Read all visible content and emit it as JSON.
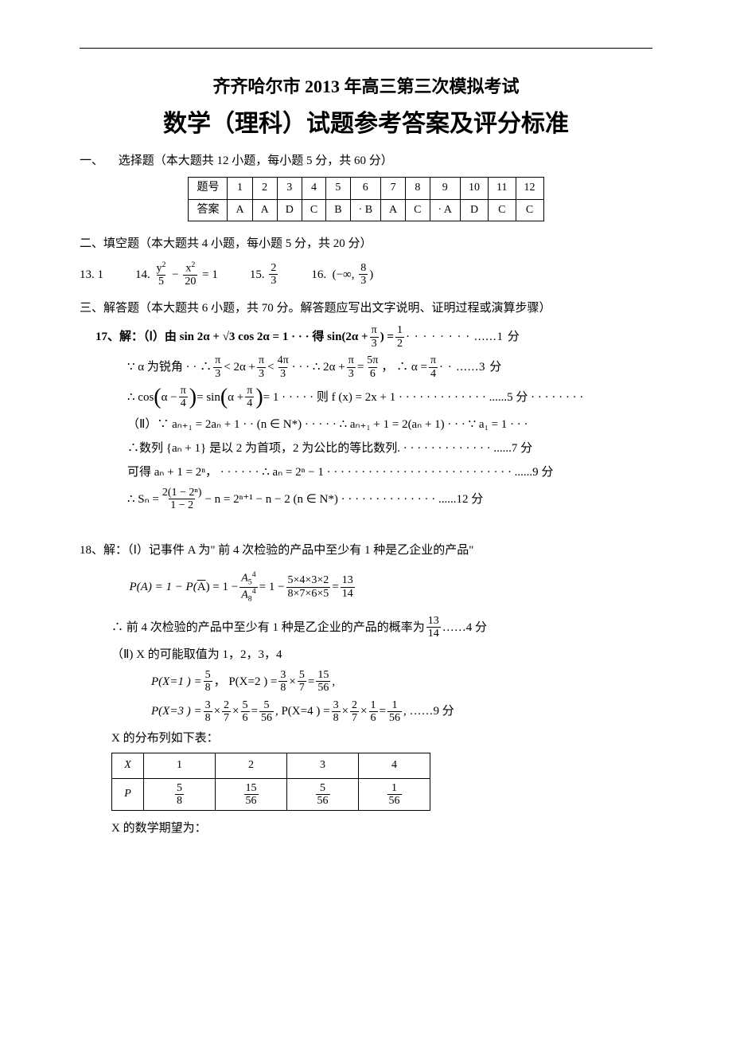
{
  "hr_color": "#000000",
  "title1": "齐齐哈尔市 2013 年高三第三次模拟考试",
  "title2": "数学（理科）试题参考答案及评分标准",
  "section1": {
    "label": "一、",
    "text": "选择题（本大题共 12 小题，每小题 5 分，共 60 分）"
  },
  "answer_table": {
    "header_label": "题号",
    "answer_label": "答案",
    "numbers": [
      "1",
      "2",
      "3",
      "4",
      "5",
      "6",
      "7",
      "8",
      "9",
      "10",
      "11",
      "12"
    ],
    "answers": [
      "A",
      "A",
      "D",
      "C",
      "B",
      "· B",
      "A",
      "C",
      "· A",
      "D",
      "C",
      "C"
    ]
  },
  "section2": "二、填空题（本大题共 4 小题，每小题 5 分，共 20  分）",
  "fills": {
    "q13": {
      "label": "13. 1"
    },
    "q14": {
      "label": "14.",
      "num1": "y",
      "den1": "5",
      "num2": "x",
      "den2": "20"
    },
    "q15": {
      "label": "15.",
      "num": "2",
      "den": "3"
    },
    "q16": {
      "label": "16.",
      "num": "8",
      "den": "3"
    }
  },
  "section3": "三、解答题（本大题共 6 小题，共 70 分。解答题应写出文字说明、证明过程或演算步骤）",
  "q17": {
    "main": "17、解：（Ⅰ）由 sin 2α + √3 cos 2α = 1 · · · 得 sin(2α + ",
    "pi3": "π",
    "pi3d": "3",
    "half_n": "1",
    "half_d": "2",
    "dots1": " · · · · · · · · ......1 分",
    "line2_pre": "∵ α 为锐角 · · ∴ ",
    "lt_txt": " < 2α + ",
    "lt_txt2": " < ",
    "four_pi": "4π",
    "dots_mid": " · · · ∴  2α + ",
    "eq_five": " = ",
    "five_pi": "5π",
    "six": "6",
    "comma": "，   ∴ α = ",
    "pi": "π",
    "four": "4",
    "dots2": " · · ......3 分",
    "line3_pre": "∴ cos",
    "alpha_m": "α − ",
    "fx": " = 1 · · · · · 则 f (x) = 2x + 1 · · · · · · · · · · · · · ......5 分 · · · · · · · ·",
    "sin_txt": " = sin",
    "alpha_p": "α + ",
    "line_ii": "（Ⅱ）∵ aₙ₊₁ = 2aₙ + 1 · ·  (n ∈ N*) · · · · · ∴ aₙ₊₁ + 1 = 2(aₙ + 1) · · · ∵ a₁ = 1 · · ·",
    "line_seq": "∴数列 {aₙ + 1} 是以 2 为首项，2 为公比的等比数列. · · · · · · · · · · · · · ......7 分",
    "line_get": "可得 aₙ + 1 = 2ⁿ， · · · · · · ∴ aₙ = 2ⁿ − 1 · · · · · · · · · · · · · · · · · · · · · · · · · · · ......9 分",
    "line_sn_pre": "∴ Sₙ = ",
    "sn_num": "2(1 − 2ⁿ)",
    "sn_den": "1 − 2",
    "sn_rest": " − n = 2ⁿ⁺¹ − n − 2    (n ∈ N*)    · · · · · · ·  · · · · · · · ......12 分"
  },
  "q18": {
    "line1": "18、解：（Ⅰ）记事件 A 为\" 前 4 次检验的产品中至少有 1 种是乙企业的产品\"",
    "pa_pre": "P(A) = 1 − P(",
    "a_bar": "A",
    "pa_mid": ") = 1 − ",
    "a54": "A₅⁴",
    "a84": "A₈⁴",
    "eq1": " = 1 − ",
    "prod_n": "5×4×3×2",
    "prod_d": "8×7×6×5",
    "eq2": " = ",
    "res_n": "13",
    "res_d": "14",
    "line3_pre": "∴ 前 4 次检验的产品中至少有 1 种是乙企业的产品的概率为",
    "score4": "         ……4 分",
    "line_ii": "（Ⅱ) X 的可能取值为 1，2，3，4",
    "px1_pre": "P(X=1 ) = ",
    "f58_n": "5",
    "f58_d": "8",
    "px2_pre": "，        P(X=2 ) = ",
    "f38_n": "3",
    "f38_d": "8",
    "times": " × ",
    "f57_n": "5",
    "f57_d": "7",
    "eq": " = ",
    "f1556_n": "15",
    "f1556_d": "56",
    "comma": " ,",
    "px3_pre": "P(X=3 ) = ",
    "f27_n": "2",
    "f27_d": "7",
    "f56_n": "5",
    "f56_d": "6",
    "f556_n": "5",
    "f556_d": "56",
    "px4_pre": " ,   P(X=4 ) = ",
    "f16_n": "1",
    "f16_d": "6",
    "f156_n": "1",
    "f156_d": "56",
    "score9": " ,                ……9 分",
    "table_label": "X 的分布列如下表：",
    "table": {
      "x_label": "X",
      "p_label": "P",
      "x_vals": [
        "1",
        "2",
        "3",
        "4"
      ],
      "p_nums": [
        "5",
        "15",
        "5",
        "1"
      ],
      "p_dens": [
        "8",
        "56",
        "56",
        "56"
      ]
    },
    "expect": "X 的数学期望为："
  }
}
